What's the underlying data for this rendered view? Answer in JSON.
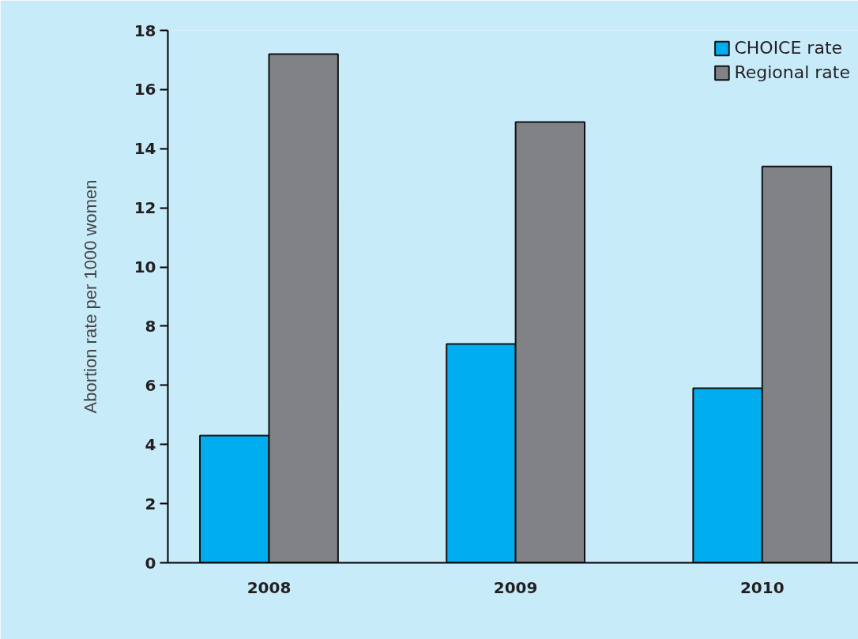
{
  "chart_data": {
    "type": "bar",
    "ylabel": "Abortion rate per 1000 women",
    "categories": [
      "2008",
      "2009",
      "2010"
    ],
    "series": [
      {
        "name": "CHOICE rate",
        "color": "#00aeef",
        "values": [
          4.3,
          7.4,
          5.9
        ]
      },
      {
        "name": "Regional rate",
        "color": "#808285",
        "values": [
          17.2,
          14.9,
          13.4
        ]
      }
    ],
    "ylim": [
      0,
      18
    ],
    "yticks": [
      0,
      2,
      4,
      6,
      8,
      10,
      12,
      14,
      16,
      18
    ],
    "grid": false,
    "legend": "top right"
  }
}
